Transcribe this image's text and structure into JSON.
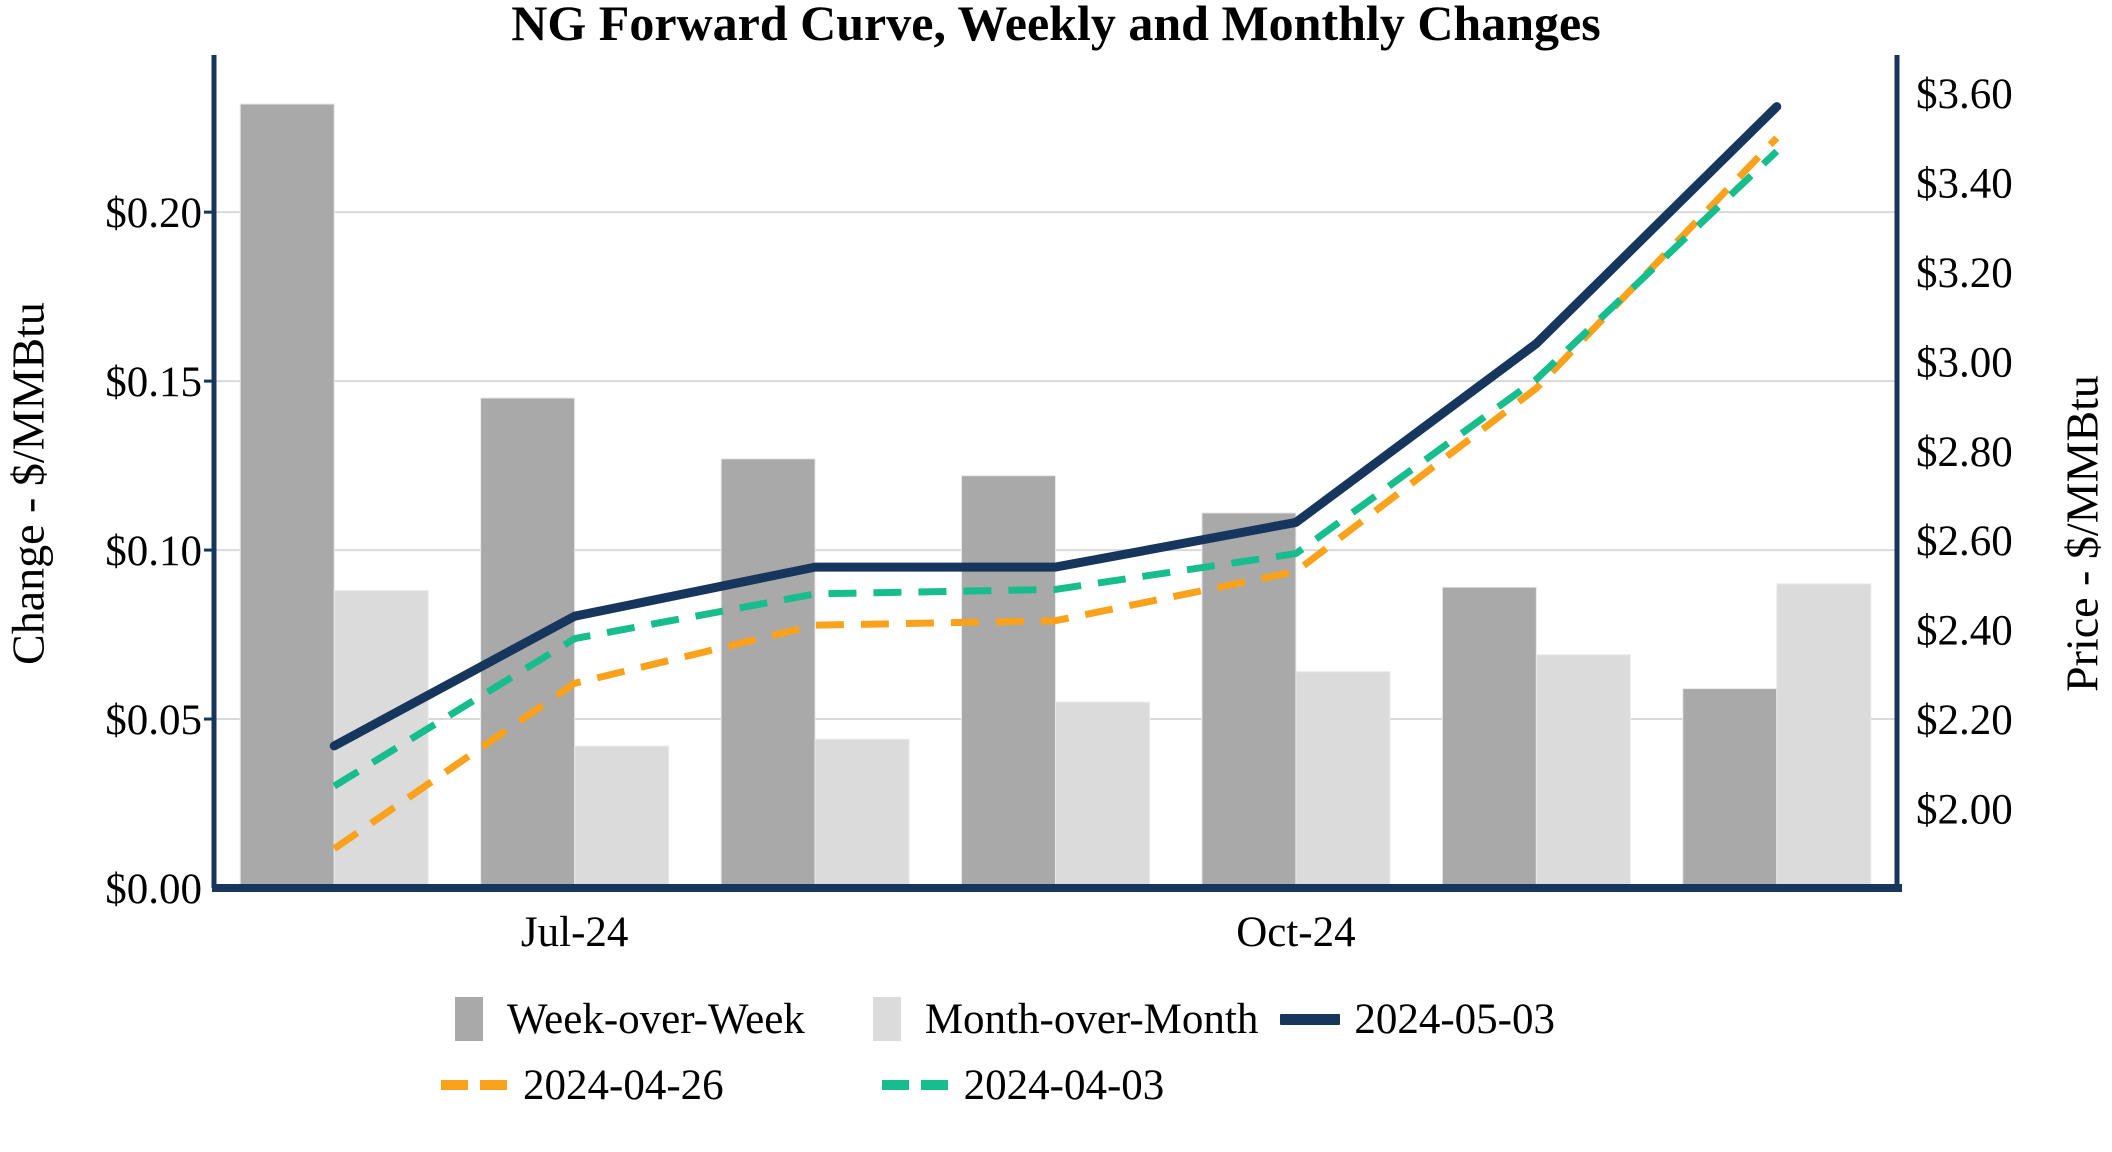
{
  "title": "NG Forward Curve, Weekly and Monthly Changes",
  "left_axis": {
    "label": "Change - $/MMBtu",
    "ticks": [
      {
        "label": "$0.00",
        "value": 0.0
      },
      {
        "label": "$0.05",
        "value": 0.05
      },
      {
        "label": "$0.10",
        "value": 0.1
      },
      {
        "label": "$0.15",
        "value": 0.15
      },
      {
        "label": "$0.20",
        "value": 0.2
      }
    ],
    "max": 0.2465
  },
  "right_axis": {
    "label": "Price - $/MMBtu",
    "ticks": [
      {
        "label": "$2.00",
        "value": 2.0
      },
      {
        "label": "$2.20",
        "value": 2.2
      },
      {
        "label": "$2.40",
        "value": 2.4
      },
      {
        "label": "$2.60",
        "value": 2.6
      },
      {
        "label": "$2.80",
        "value": 2.8
      },
      {
        "label": "$3.00",
        "value": 3.0
      },
      {
        "label": "$3.20",
        "value": 3.2
      },
      {
        "label": "$3.40",
        "value": 3.4
      },
      {
        "label": "$3.60",
        "value": 3.6
      }
    ],
    "baseline_value": 1.822,
    "dollars_per_left_unit": 7.56
  },
  "x_axis": {
    "visible_labels": [
      {
        "text": "Jul-24",
        "group_index": 1
      },
      {
        "text": "Oct-24",
        "group_index": 4
      }
    ]
  },
  "colors": {
    "navy": "#17365D",
    "orange": "#FAA21B",
    "green": "#17BD8D",
    "bar_dark": "#A9A9A9",
    "bar_light": "#DBDBDB",
    "gridline": "#D9D9D9"
  },
  "chart_data": {
    "type": "combo-bar-line-dual-axis",
    "group_count": 7,
    "x_tick_labels_visible": [
      "Jul-24",
      "Oct-24"
    ],
    "bar_series": [
      {
        "name": "Week-over-Week",
        "axis": "left",
        "color": "#A9A9A9",
        "values": [
          0.232,
          0.145,
          0.127,
          0.122,
          0.111,
          0.089,
          0.059
        ]
      },
      {
        "name": "Month-over-Month",
        "axis": "left",
        "color": "#DBDBDB",
        "values": [
          0.088,
          0.042,
          0.044,
          0.055,
          0.064,
          0.069,
          0.09
        ]
      }
    ],
    "line_series": [
      {
        "name": "2024-05-03",
        "axis": "right",
        "style": "solid",
        "color": "#17365D",
        "values": [
          2.14,
          2.43,
          2.54,
          2.54,
          2.64,
          3.04,
          3.57
        ]
      },
      {
        "name": "2024-04-26",
        "axis": "right",
        "style": "dashed",
        "color": "#FAA21B",
        "values": [
          1.91,
          2.28,
          2.41,
          2.42,
          2.53,
          2.94,
          3.5
        ]
      },
      {
        "name": "2024-04-03",
        "axis": "right",
        "style": "dashed",
        "color": "#17BD8D",
        "values": [
          2.05,
          2.38,
          2.48,
          2.49,
          2.57,
          2.96,
          3.47
        ]
      }
    ],
    "left_axis_range": [
      0,
      0.2465
    ],
    "right_axis_range": [
      1.822,
      3.675
    ],
    "grid": "horizontal",
    "legend_position": "bottom-left-two-rows"
  }
}
